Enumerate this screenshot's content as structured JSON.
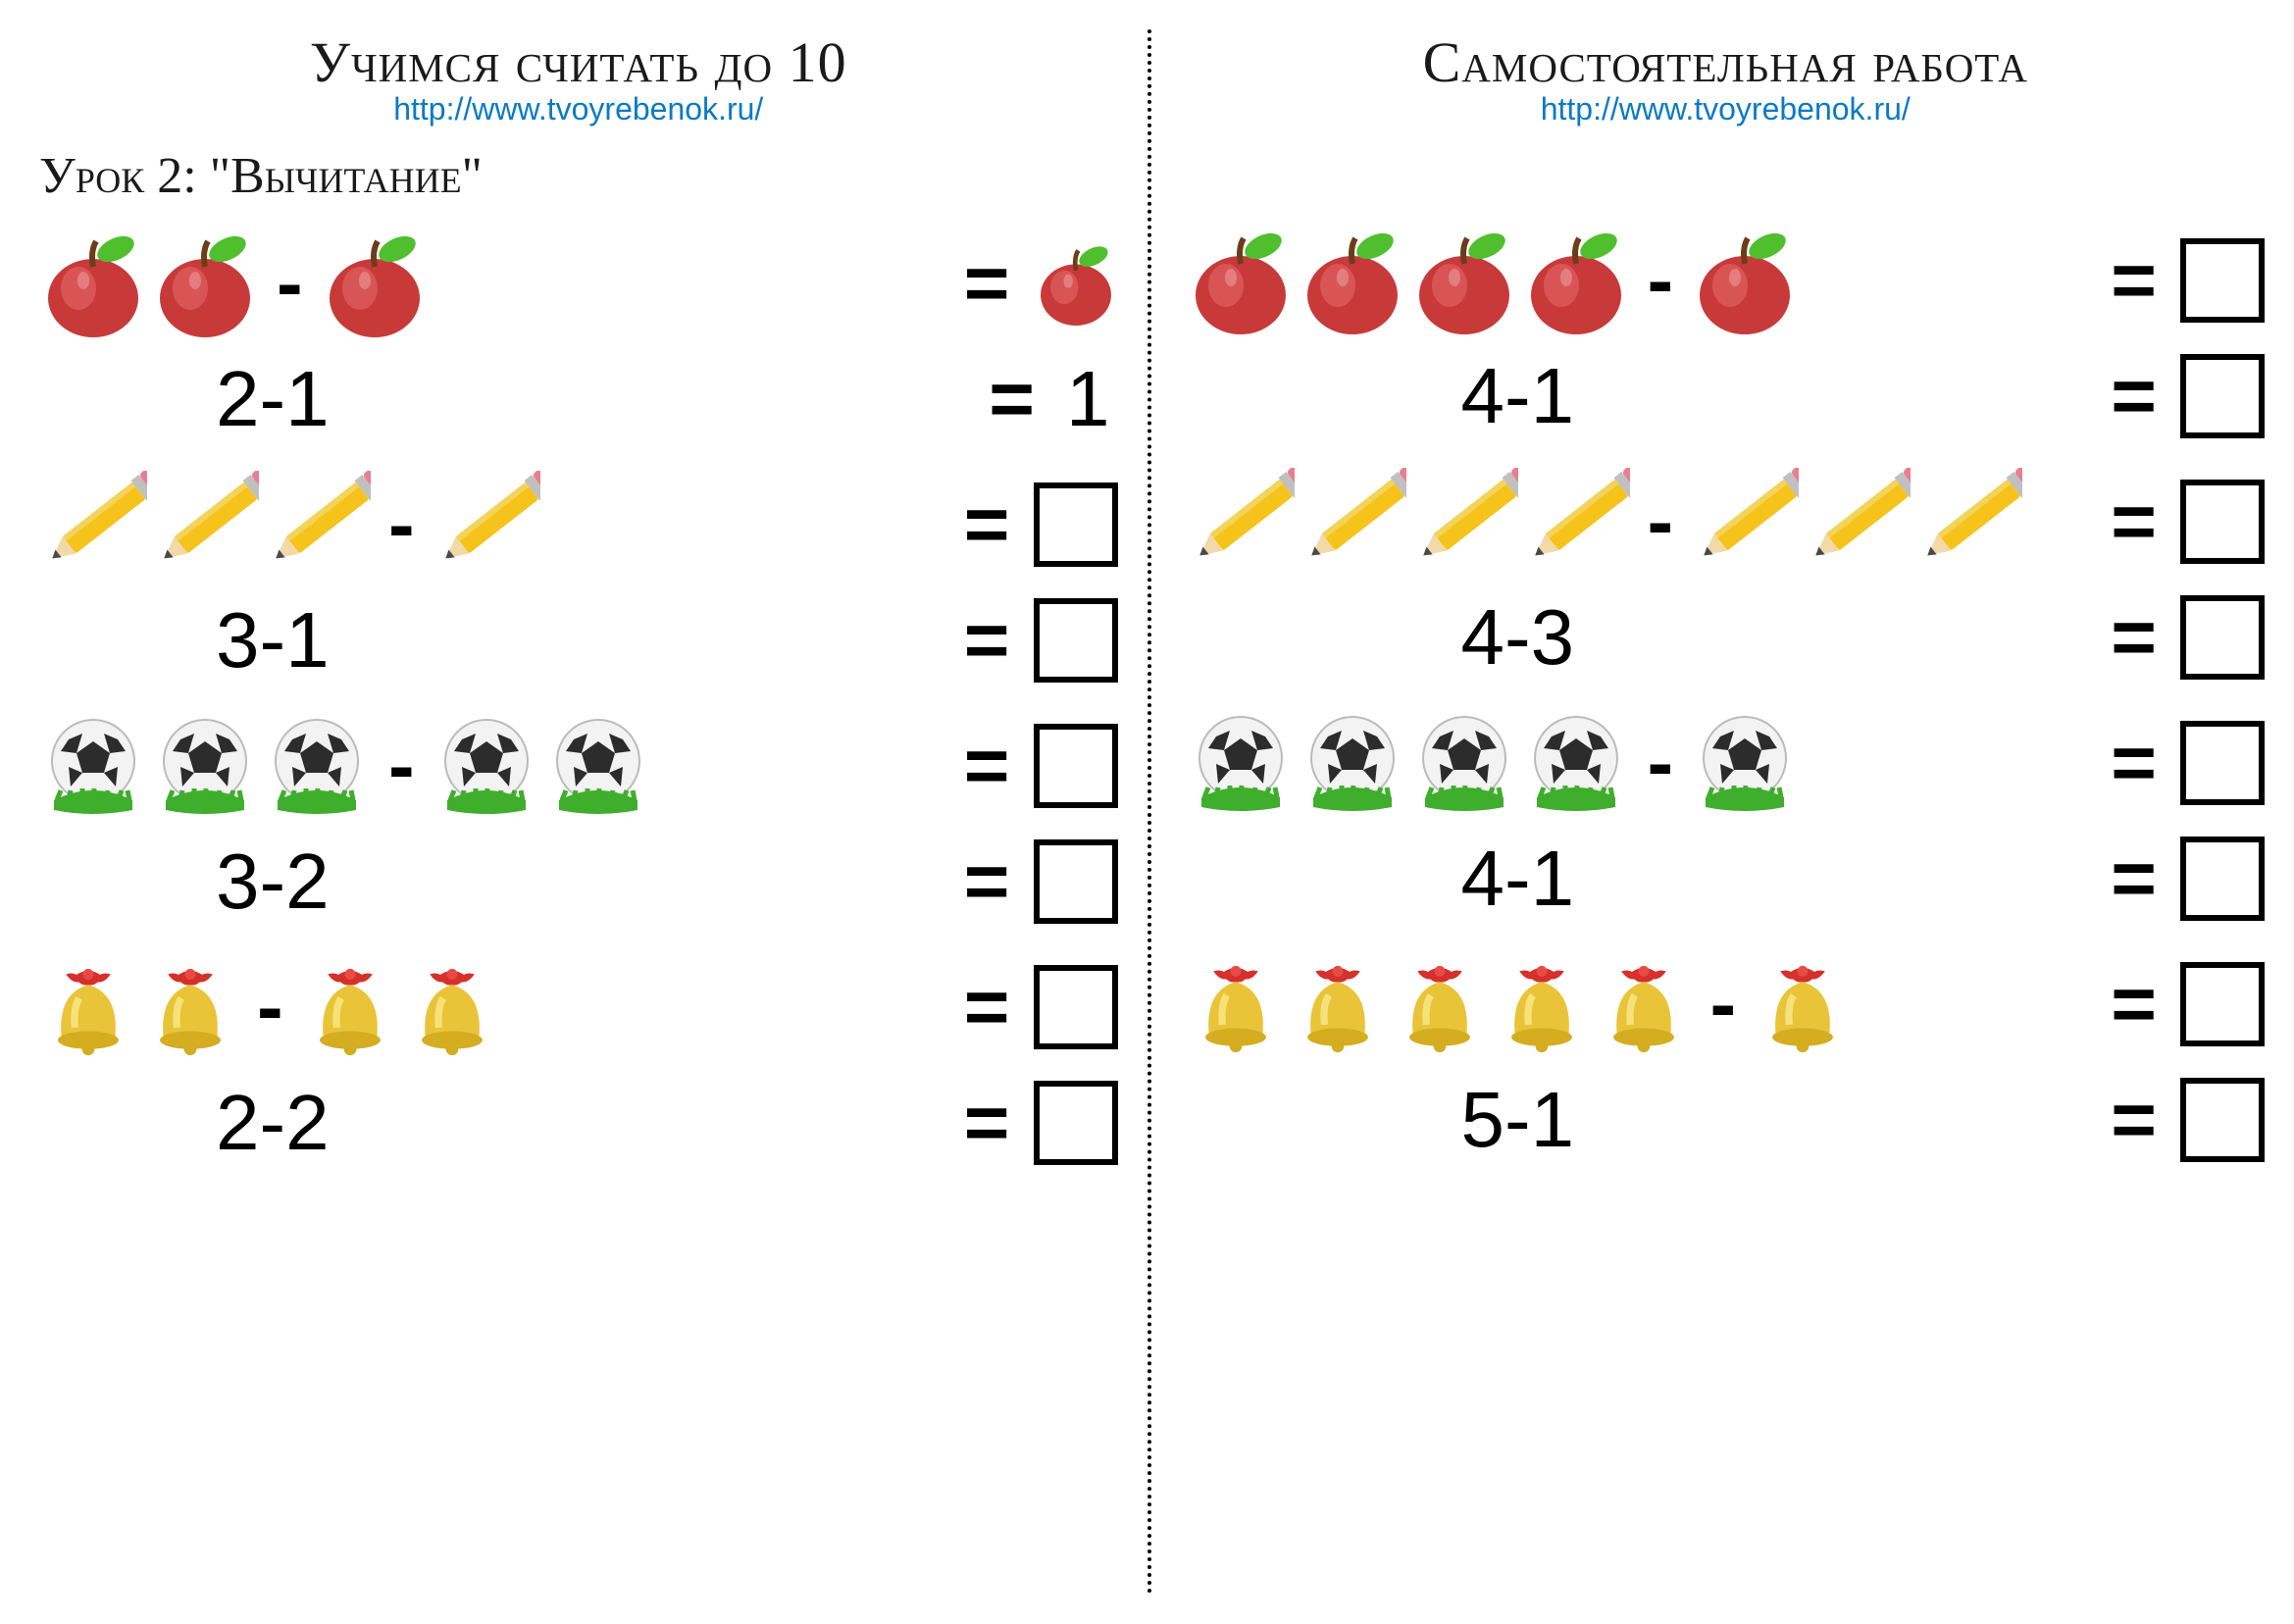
{
  "left": {
    "title": "Учимся считать до 10",
    "url": "http://www.tvoyrebenok.ru/",
    "lesson": "Урок 2: \"Вычитание\"",
    "rows": [
      {
        "icon": "apple",
        "a": 2,
        "b": 1,
        "answer": "1",
        "text": "2-1"
      },
      {
        "icon": "pencil",
        "a": 3,
        "b": 1,
        "answer": "",
        "text": "3-1"
      },
      {
        "icon": "ball",
        "a": 3,
        "b": 2,
        "answer": "",
        "text": "3-2"
      },
      {
        "icon": "bell",
        "a": 2,
        "b": 2,
        "answer": "",
        "text": "2-2"
      }
    ]
  },
  "right": {
    "title": "Самостоятельная работа",
    "url": "http://www.tvoyrebenok.ru/",
    "rows": [
      {
        "icon": "apple",
        "a": 4,
        "b": 1,
        "answer": "",
        "text": "4-1"
      },
      {
        "icon": "pencil",
        "a": 4,
        "b": 3,
        "answer": "",
        "text": "4-3"
      },
      {
        "icon": "ball",
        "a": 4,
        "b": 1,
        "answer": "",
        "text": "4-1"
      },
      {
        "icon": "bell",
        "a": 5,
        "b": 1,
        "answer": "",
        "text": "5-1"
      }
    ]
  },
  "colors": {
    "apple_body": "#c83a3a",
    "apple_hi": "#d95555",
    "apple_leaf": "#4fbf2e",
    "apple_stem": "#6b3d1a",
    "pencil_body": "#f6c31b",
    "pencil_band": "#5aa0d6",
    "pencil_eraser": "#e97f8e",
    "pencil_wood": "#f3d9a8",
    "pencil_tip": "#4a4a4a",
    "ball_white": "#f3f3f3",
    "ball_black": "#2c2c2c",
    "grass": "#3fae2d",
    "bell_body": "#e9c438",
    "bell_hi": "#f6e27a",
    "bell_ribbon": "#d6302b",
    "link": "#0b7ac7",
    "text": "#1a1a1a"
  },
  "sizes": {
    "icon": 110,
    "pencil_w": 140,
    "pencil_h": 90
  }
}
